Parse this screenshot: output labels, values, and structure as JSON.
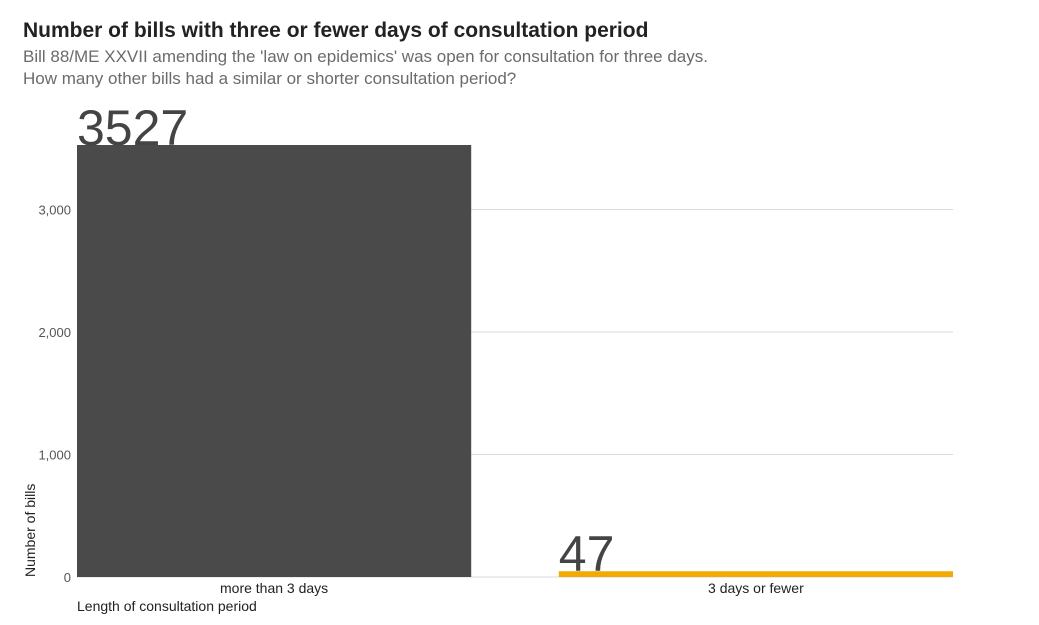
{
  "chart_data": {
    "type": "bar",
    "title": "Number of bills with three or fewer days of consultation period",
    "subtitle": [
      "Bill 88/ME XXVII amending the 'law on epidemics' was open for consultation for three days.",
      "How many other bills had a similar or shorter consultation period?"
    ],
    "xlabel": "Length of consultation period",
    "ylabel": "Number of bills",
    "categories": [
      "more than 3 days",
      "3 days or fewer"
    ],
    "values": [
      3527,
      47
    ],
    "data_labels": [
      "3527",
      "47"
    ],
    "colors": [
      "#4a4a4a",
      "#f2a900"
    ],
    "ylim": [
      0,
      3527
    ],
    "yticks": [
      0,
      1000,
      2000,
      3000
    ],
    "ytick_labels": [
      "0",
      "1,000",
      "2,000",
      "3,000"
    ],
    "grid": "horizontal",
    "legend": "none"
  }
}
